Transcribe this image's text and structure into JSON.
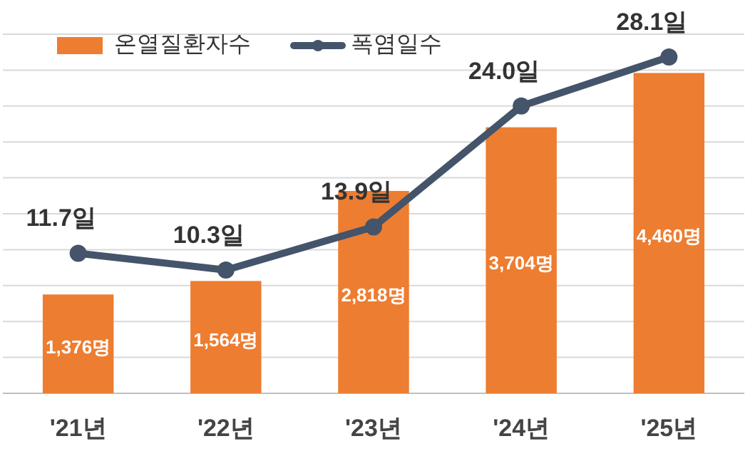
{
  "chart_data": {
    "type": "bar",
    "categories": [
      "'21년",
      "'22년",
      "'23년",
      "'24년",
      "'25년"
    ],
    "series": [
      {
        "name": "온열질환자수",
        "color": "#ed7d31",
        "values": [
          1376,
          1564,
          2818,
          3704,
          4460
        ],
        "value_labels": [
          "1,376명",
          "1,564명",
          "2,818명",
          "3,704명",
          "4,460명"
        ]
      },
      {
        "name": "폭염일수",
        "type": "line",
        "axis": "y2",
        "color": "#44546a",
        "values": [
          11.7,
          10.3,
          13.9,
          24.0,
          28.1
        ],
        "value_labels": [
          "11.7일",
          "10.3일",
          "13.9일",
          "24.0일",
          "28.1일"
        ]
      }
    ],
    "ylim": [
      0,
      5000
    ],
    "yticks": [
      {
        "value": 0,
        "label": null
      },
      {
        "value": 500,
        "label": null
      },
      {
        "value": 1000,
        "label": null
      },
      {
        "value": 1500,
        "label": null
      },
      {
        "value": 2000,
        "label": null
      },
      {
        "value": 2500,
        "label": null
      },
      {
        "value": 3000,
        "label": null
      },
      {
        "value": 3500,
        "label": null
      },
      {
        "value": 4000,
        "label": null
      },
      {
        "value": 4500,
        "label": null
      },
      {
        "value": 5000,
        "label": null
      }
    ],
    "y2lim": [
      0,
      30
    ],
    "tick_labels": "x",
    "grid": "y",
    "legend": "top left",
    "marker": "circle"
  }
}
